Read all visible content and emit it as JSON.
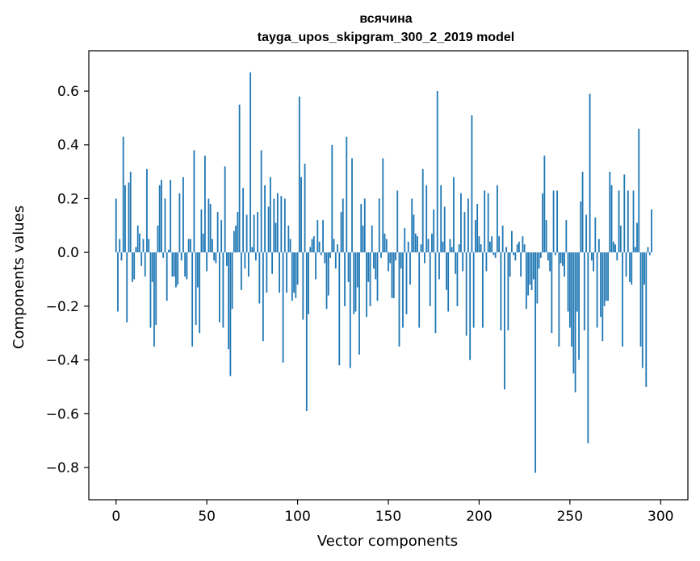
{
  "chart_data": {
    "type": "bar",
    "title": "всячина",
    "subtitle": "tayga_upos_skipgram_300_2_2019 model",
    "xlabel": "Vector components",
    "ylabel": "Components values",
    "xlim": [
      -15,
      315
    ],
    "ylim": [
      -0.92,
      0.75
    ],
    "xticks": [
      0,
      50,
      100,
      150,
      200,
      250,
      300
    ],
    "yticks": [
      -0.8,
      -0.6,
      -0.4,
      -0.2,
      0.0,
      0.2,
      0.4,
      0.6
    ],
    "ytick_labels": [
      "−0.8",
      "−0.6",
      "−0.4",
      "−0.2",
      "0.0",
      "0.2",
      "0.4",
      "0.6"
    ],
    "grid": false,
    "bar_color": "#1f77b4",
    "x_start": 0,
    "values": [
      0.2,
      -0.22,
      0.05,
      -0.03,
      0.43,
      0.25,
      -0.26,
      0.26,
      0.3,
      -0.11,
      -0.1,
      0.02,
      0.1,
      0.07,
      -0.05,
      0.05,
      -0.09,
      0.31,
      0.05,
      -0.28,
      -0.11,
      -0.35,
      -0.27,
      0.1,
      0.25,
      0.27,
      -0.02,
      0.2,
      -0.18,
      0.01,
      0.27,
      -0.09,
      -0.09,
      -0.13,
      -0.12,
      0.22,
      -0.03,
      0.28,
      -0.09,
      -0.1,
      0.05,
      0.05,
      -0.35,
      0.38,
      -0.27,
      -0.13,
      -0.3,
      0.16,
      0.07,
      0.36,
      -0.07,
      0.2,
      0.18,
      0.05,
      -0.03,
      -0.04,
      0.15,
      -0.26,
      0.12,
      -0.28,
      0.32,
      -0.05,
      -0.36,
      -0.46,
      -0.21,
      0.08,
      0.1,
      0.15,
      0.55,
      -0.14,
      0.24,
      -0.06,
      0.14,
      -0.09,
      0.67,
      0.02,
      0.14,
      -0.03,
      0.15,
      -0.19,
      0.38,
      -0.33,
      0.25,
      -0.15,
      0.17,
      0.28,
      -0.08,
      0.2,
      0.11,
      0.22,
      -0.15,
      0.21,
      -0.41,
      0.2,
      -0.15,
      0.1,
      0.05,
      -0.18,
      -0.15,
      -0.17,
      -0.12,
      0.58,
      0.28,
      -0.25,
      0.33,
      -0.59,
      -0.23,
      0.02,
      0.05,
      0.06,
      -0.1,
      0.12,
      0.04,
      -0.01,
      0.12,
      -0.04,
      -0.21,
      -0.16,
      -0.02,
      0.4,
      0.05,
      -0.06,
      0.03,
      -0.42,
      0.15,
      0.2,
      -0.2,
      0.43,
      -0.11,
      -0.43,
      0.35,
      -0.23,
      -0.22,
      -0.13,
      -0.38,
      0.18,
      0.1,
      0.2,
      -0.24,
      -0.11,
      -0.2,
      0.1,
      -0.06,
      -0.1,
      -0.18,
      0.2,
      -0.02,
      0.35,
      0.07,
      0.05,
      -0.07,
      -0.04,
      -0.17,
      -0.17,
      -0.03,
      0.23,
      -0.35,
      -0.06,
      -0.28,
      0.09,
      -0.23,
      0.04,
      -0.12,
      0.2,
      0.14,
      0.07,
      0.06,
      -0.28,
      0.03,
      0.31,
      -0.04,
      0.25,
      0.05,
      -0.2,
      0.07,
      0.16,
      -0.3,
      0.6,
      -0.1,
      0.25,
      0.04,
      0.17,
      -0.14,
      -0.22,
      0.05,
      0.02,
      0.28,
      -0.08,
      -0.2,
      0.03,
      0.22,
      -0.07,
      0.15,
      -0.31,
      0.2,
      -0.4,
      0.51,
      -0.28,
      0.12,
      0.18,
      0.06,
      0.03,
      -0.28,
      0.23,
      -0.07,
      0.22,
      0.04,
      0.06,
      -0.01,
      -0.02,
      0.25,
      0.06,
      -0.29,
      0.1,
      -0.51,
      0.02,
      -0.29,
      -0.09,
      0.08,
      -0.01,
      -0.03,
      0.03,
      0.04,
      -0.09,
      0.06,
      0.03,
      -0.21,
      -0.16,
      -0.12,
      -0.14,
      -0.1,
      -0.82,
      -0.19,
      -0.06,
      -0.02,
      0.22,
      0.36,
      0.12,
      -0.03,
      -0.07,
      -0.3,
      0.23,
      -0.01,
      0.23,
      -0.35,
      -0.04,
      -0.05,
      -0.09,
      0.12,
      -0.22,
      -0.28,
      -0.35,
      -0.45,
      -0.52,
      -0.22,
      -0.4,
      0.19,
      0.3,
      -0.29,
      0.14,
      -0.71,
      0.59,
      -0.03,
      -0.07,
      0.13,
      -0.28,
      0.05,
      -0.24,
      -0.33,
      -0.2,
      -0.18,
      -0.18,
      0.3,
      0.25,
      0.04,
      0.03,
      -0.03,
      0.23,
      0.1,
      -0.35,
      0.29,
      -0.09,
      0.23,
      -0.11,
      -0.12,
      0.23,
      0.02,
      0.11,
      0.46,
      -0.35,
      -0.43,
      -0.12,
      -0.5,
      0.02,
      -0.01,
      0.16
    ]
  }
}
